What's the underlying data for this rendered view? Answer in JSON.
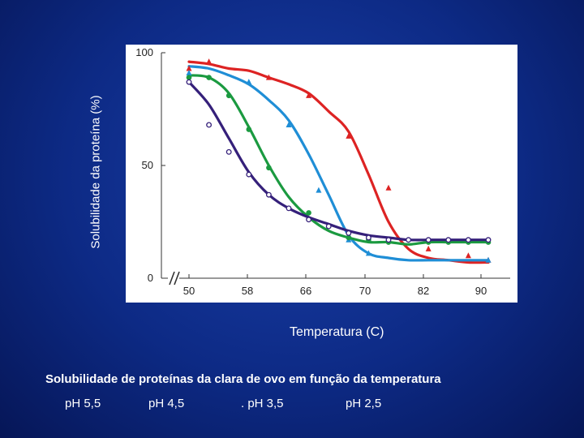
{
  "slide": {
    "caption": "Solubilidade de proteínas da clara de ovo em função da temperatura",
    "legend": [
      "pH 5,5",
      "pH  4,5",
      ". pH   3,5",
      "pH    2,5"
    ]
  },
  "chart_data": {
    "type": "line",
    "xlabel": "Temperatura (C)",
    "ylabel": "Solubilidade da proteína (%)",
    "x_ticks": [
      "50",
      "58",
      "66",
      "70",
      "82",
      "90"
    ],
    "y_ticks": [
      "0",
      "50",
      "100"
    ],
    "ylim": [
      0,
      100
    ],
    "axis_break": true,
    "grid": false,
    "series": [
      {
        "color": "#dd2323",
        "marker": "triangle",
        "points": [
          [
            50,
            96
          ],
          [
            52,
            95
          ],
          [
            54,
            93
          ],
          [
            56,
            92
          ],
          [
            58,
            89
          ],
          [
            60,
            86
          ],
          [
            62,
            82
          ],
          [
            64,
            74
          ],
          [
            66,
            65
          ],
          [
            68,
            46
          ],
          [
            70,
            25
          ],
          [
            72,
            13
          ],
          [
            74,
            9
          ],
          [
            76,
            8
          ],
          [
            78,
            7
          ],
          [
            80,
            7
          ]
        ],
        "markers": [
          [
            50,
            93
          ],
          [
            52,
            96
          ],
          [
            58,
            89
          ],
          [
            62,
            81
          ],
          [
            66,
            63
          ],
          [
            70,
            40
          ],
          [
            74,
            13
          ],
          [
            78,
            10
          ],
          [
            80,
            8
          ]
        ]
      },
      {
        "color": "#1f8ed6",
        "marker": "triangle",
        "points": [
          [
            50,
            94
          ],
          [
            52,
            93
          ],
          [
            54,
            90
          ],
          [
            56,
            86
          ],
          [
            58,
            79
          ],
          [
            60,
            70
          ],
          [
            62,
            55
          ],
          [
            64,
            37
          ],
          [
            66,
            19
          ],
          [
            68,
            11
          ],
          [
            70,
            9
          ],
          [
            72,
            8
          ],
          [
            74,
            8
          ],
          [
            76,
            8
          ],
          [
            78,
            8
          ],
          [
            80,
            8
          ]
        ],
        "markers": [
          [
            50,
            91
          ],
          [
            56,
            87
          ],
          [
            60,
            68
          ],
          [
            63,
            39
          ],
          [
            66,
            17
          ],
          [
            68,
            11
          ],
          [
            80,
            8
          ]
        ]
      },
      {
        "color": "#1b9a40",
        "marker": "circle-filled",
        "points": [
          [
            50,
            90
          ],
          [
            52,
            89
          ],
          [
            54,
            82
          ],
          [
            56,
            67
          ],
          [
            58,
            50
          ],
          [
            60,
            36
          ],
          [
            62,
            27
          ],
          [
            64,
            21
          ],
          [
            66,
            18
          ],
          [
            68,
            16
          ],
          [
            70,
            16
          ],
          [
            72,
            15
          ],
          [
            74,
            16
          ],
          [
            76,
            16
          ],
          [
            78,
            16
          ],
          [
            80,
            16
          ]
        ],
        "markers": [
          [
            50,
            89
          ],
          [
            52,
            89
          ],
          [
            54,
            81
          ],
          [
            56,
            66
          ],
          [
            58,
            49
          ],
          [
            62,
            29
          ],
          [
            66,
            18
          ],
          [
            68,
            17
          ],
          [
            70,
            16
          ],
          [
            74,
            16
          ],
          [
            76,
            16
          ],
          [
            78,
            16
          ],
          [
            80,
            16
          ]
        ]
      },
      {
        "color": "#35207a",
        "marker": "circle-open",
        "points": [
          [
            50,
            87
          ],
          [
            52,
            77
          ],
          [
            54,
            62
          ],
          [
            56,
            47
          ],
          [
            58,
            37
          ],
          [
            60,
            31
          ],
          [
            62,
            27
          ],
          [
            64,
            24
          ],
          [
            66,
            21
          ],
          [
            68,
            19
          ],
          [
            70,
            18
          ],
          [
            72,
            17
          ],
          [
            74,
            17
          ],
          [
            76,
            17
          ],
          [
            78,
            17
          ],
          [
            80,
            17
          ]
        ],
        "markers": [
          [
            50,
            87
          ],
          [
            52,
            68
          ],
          [
            54,
            56
          ],
          [
            56,
            46
          ],
          [
            58,
            37
          ],
          [
            60,
            31
          ],
          [
            62,
            26
          ],
          [
            64,
            23
          ],
          [
            66,
            20
          ],
          [
            68,
            18
          ],
          [
            70,
            17
          ],
          [
            72,
            17
          ],
          [
            74,
            17
          ],
          [
            76,
            17
          ],
          [
            78,
            17
          ],
          [
            80,
            17
          ]
        ]
      }
    ]
  }
}
